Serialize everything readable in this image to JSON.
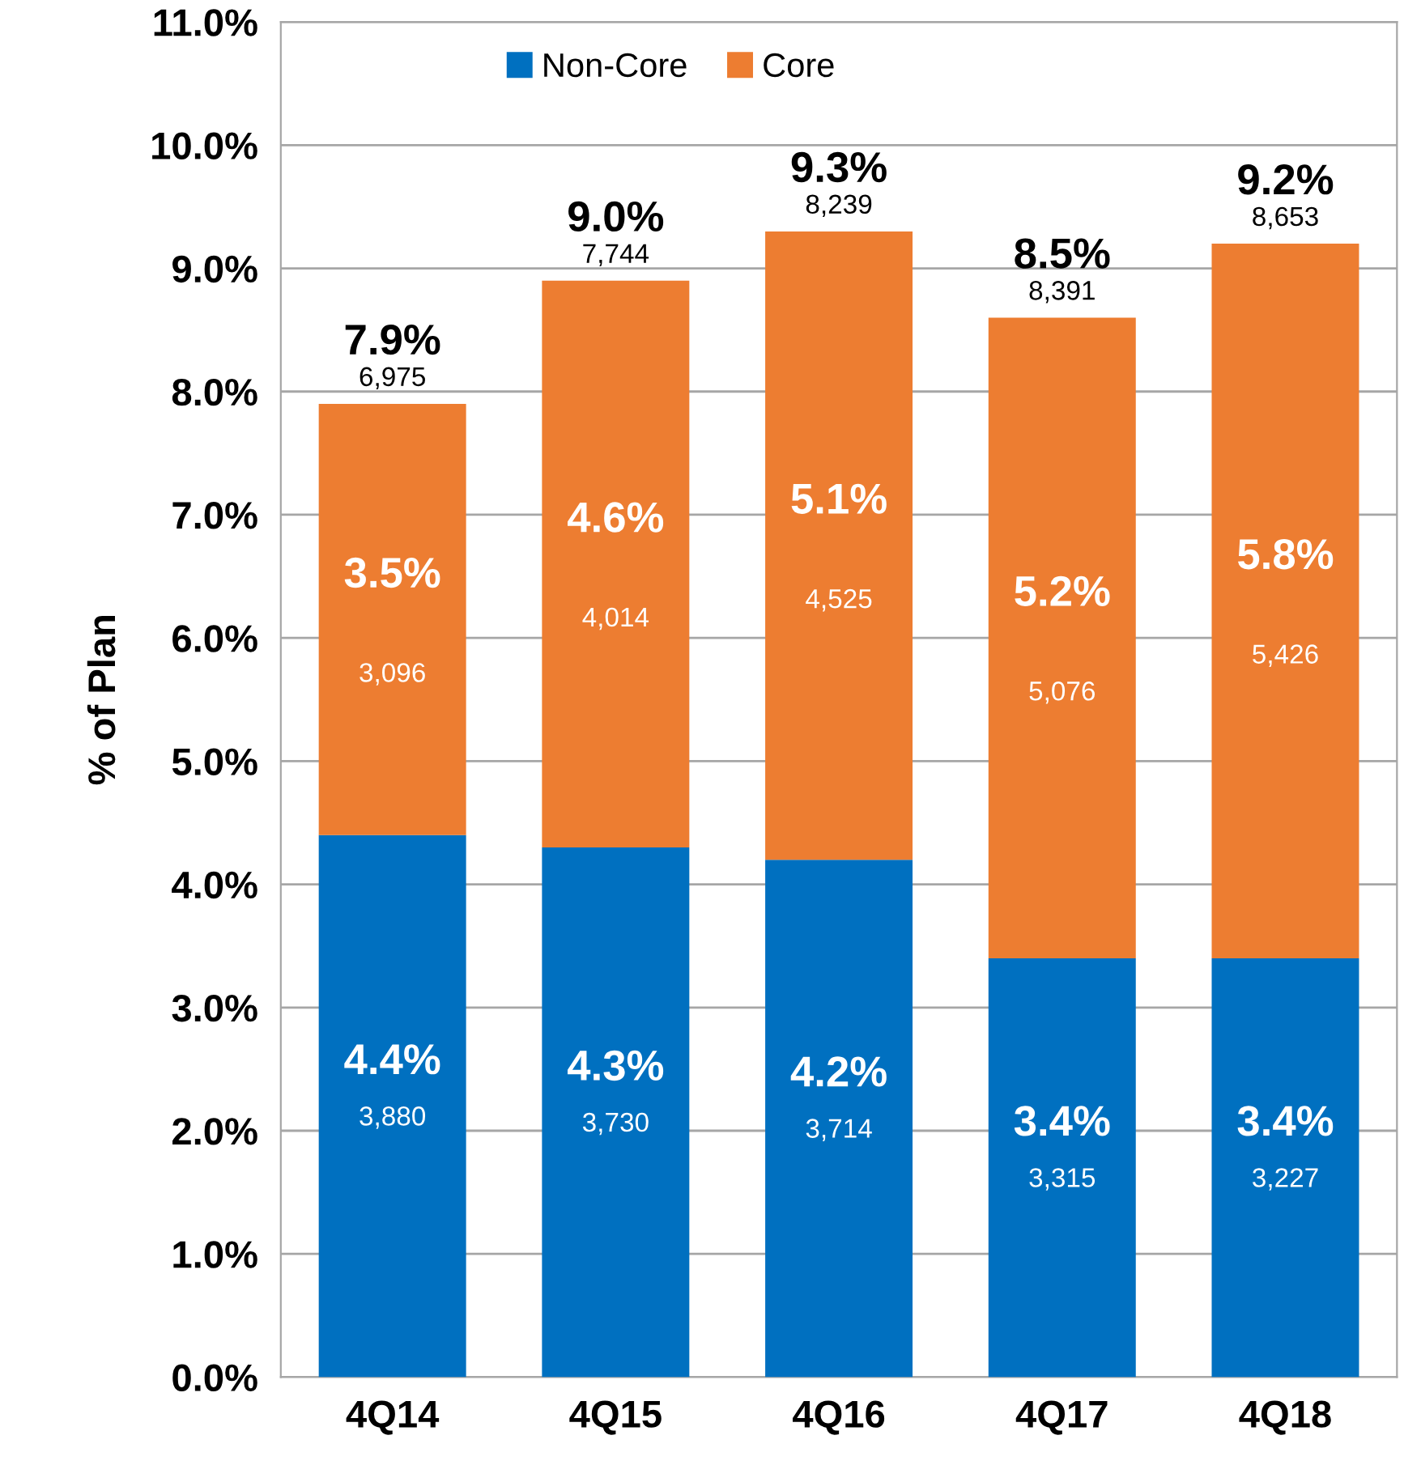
{
  "chart_data": {
    "type": "bar",
    "stacked": true,
    "ylabel": "% of Plan",
    "categories": [
      "4Q14",
      "4Q15",
      "4Q16",
      "4Q17",
      "4Q18"
    ],
    "series": [
      {
        "name": "Non-Core",
        "color": "#0070c0",
        "values": [
          4.4,
          4.3,
          4.2,
          3.4,
          3.4
        ],
        "value_labels": [
          "4.4%\n3,880",
          "4.3%\n3,730",
          "4.2%\n3,714",
          "3.4%\n3,315",
          "3.4%\n3,227"
        ]
      },
      {
        "name": "Core",
        "color": "#ed7d31",
        "values": [
          3.5,
          4.6,
          5.1,
          5.2,
          5.8
        ],
        "value_labels": [
          "3.5%\n\n3,096",
          "4.6%\n\n4,014",
          "5.1%\n\n4,525",
          "5.2%\n\n5,076",
          "5.8%\n\n5,426"
        ]
      }
    ],
    "totals": [
      "7.9%\n6,975",
      "9.0%\n7,744",
      "9.3%\n8,239",
      "8.5%\n8,391",
      "9.2%\n8,653"
    ],
    "ylim": [
      0,
      11
    ],
    "yticks": [
      {
        "value": 0,
        "label": "0.0%"
      },
      {
        "value": 1,
        "label": "1.0%"
      },
      {
        "value": 2,
        "label": "2.0%"
      },
      {
        "value": 3,
        "label": "3.0%"
      },
      {
        "value": 4,
        "label": "4.0%"
      },
      {
        "value": 5,
        "label": "5.0%"
      },
      {
        "value": 6,
        "label": "6.0%"
      },
      {
        "value": 7,
        "label": "7.0%"
      },
      {
        "value": 8,
        "label": "8.0%"
      },
      {
        "value": 9,
        "label": "9.0%"
      },
      {
        "value": 10,
        "label": "10.0%"
      },
      {
        "value": 11,
        "label": "11.0%"
      }
    ],
    "grid": "y",
    "legend": "top"
  }
}
